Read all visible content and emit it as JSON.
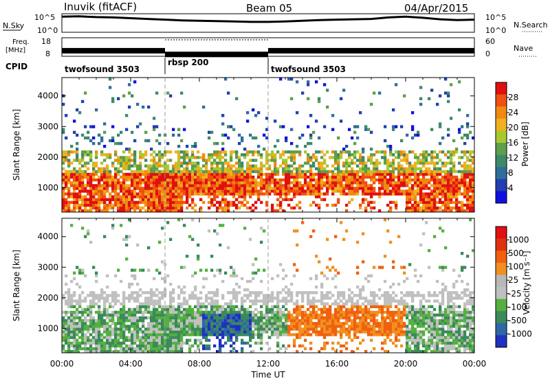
{
  "header": {
    "station": "Inuvik (fitACF)",
    "beam": "Beam 05",
    "date": "04/Apr/2015"
  },
  "left_labels": {
    "nsky": "N.Sky",
    "freq_line1": "Freq.",
    "freq_line2": "[MHz]",
    "cpid": "CPID"
  },
  "right_labels": {
    "nsearch": "N.Search",
    "nave": "Nave"
  },
  "colors": {
    "power_scale": [
      "#1010e0",
      "#2040b0",
      "#2f6e9a",
      "#3c8a6a",
      "#5f9e4a",
      "#a8c830",
      "#f0b020",
      "#f08a10",
      "#f05010",
      "#e01010"
    ],
    "velocity_scale": [
      "#2030c0",
      "#2f66a8",
      "#3a8a5a",
      "#55b040",
      "#c0c0c0",
      "#b8b8b8",
      "#f09020",
      "#f06010",
      "#e03010",
      "#e01010"
    ]
  },
  "chart_data": [
    {
      "type": "line",
      "name": "noise",
      "ylim_labels": [
        "10^5",
        "10^0"
      ],
      "right_ticks": [
        "10^5",
        "10^0"
      ],
      "x_hours": [
        0,
        1,
        2,
        3,
        4,
        5,
        6,
        7,
        8,
        9,
        10,
        11,
        12,
        13,
        14,
        15,
        16,
        17,
        18,
        19,
        20,
        21,
        22,
        23,
        24
      ],
      "sky_log": [
        4.2,
        4.3,
        4.1,
        4.0,
        3.8,
        3.6,
        3.4,
        3.2,
        3.1,
        3.0,
        2.9,
        2.8,
        2.8,
        2.9,
        3.1,
        3.3,
        3.4,
        3.5,
        3.6,
        4.0,
        4.2,
        3.9,
        3.5,
        3.3,
        3.4
      ]
    },
    {
      "type": "line",
      "name": "frequency",
      "left_ticks": [
        "18",
        "8"
      ],
      "right_ticks": [
        "60",
        "0"
      ],
      "segments": [
        {
          "start": 0,
          "end": 6,
          "freq_mhz": 11
        },
        {
          "start": 6,
          "end": 12,
          "freq_mhz": 9
        },
        {
          "start": 12,
          "end": 24,
          "freq_mhz": 11
        }
      ],
      "nave_dotted": {
        "start": 6,
        "end": 12,
        "value": 55
      }
    },
    {
      "type": "table",
      "name": "cpid",
      "segments": [
        {
          "label": "twofsound 3503",
          "start": 0,
          "end": 6
        },
        {
          "label": "rbsp 200",
          "start": 6,
          "end": 12
        },
        {
          "label": "twofsound 3503",
          "start": 12,
          "end": 24
        }
      ]
    },
    {
      "type": "heatmap",
      "name": "power",
      "ylabel": "Slant Range [km]",
      "yticks": [
        "1000",
        "2000",
        "3000",
        "4000"
      ],
      "ylim": [
        200,
        4600
      ],
      "xlim": [
        0,
        24
      ],
      "colorbar_label": "Power [dB]",
      "colorbar_ticks": [
        "28",
        "24",
        "20",
        "16",
        "12",
        "8",
        "4"
      ],
      "vmin": 0,
      "vmax": 30
    },
    {
      "type": "heatmap",
      "name": "velocity",
      "ylabel": "Slant Range [km]",
      "yticks": [
        "1000",
        "2000",
        "3000",
        "4000"
      ],
      "ylim": [
        200,
        4600
      ],
      "xlim": [
        0,
        24
      ],
      "xlabel": "Time UT",
      "xticks": [
        "00:00",
        "04:00",
        "08:00",
        "12:00",
        "16:00",
        "20:00",
        "00:00"
      ],
      "colorbar_label": "Velocity [m s⁻¹]",
      "colorbar_ticks": [
        "1000",
        "500",
        "100",
        "25",
        "-25",
        "-100",
        "-500",
        "-1000"
      ]
    }
  ]
}
